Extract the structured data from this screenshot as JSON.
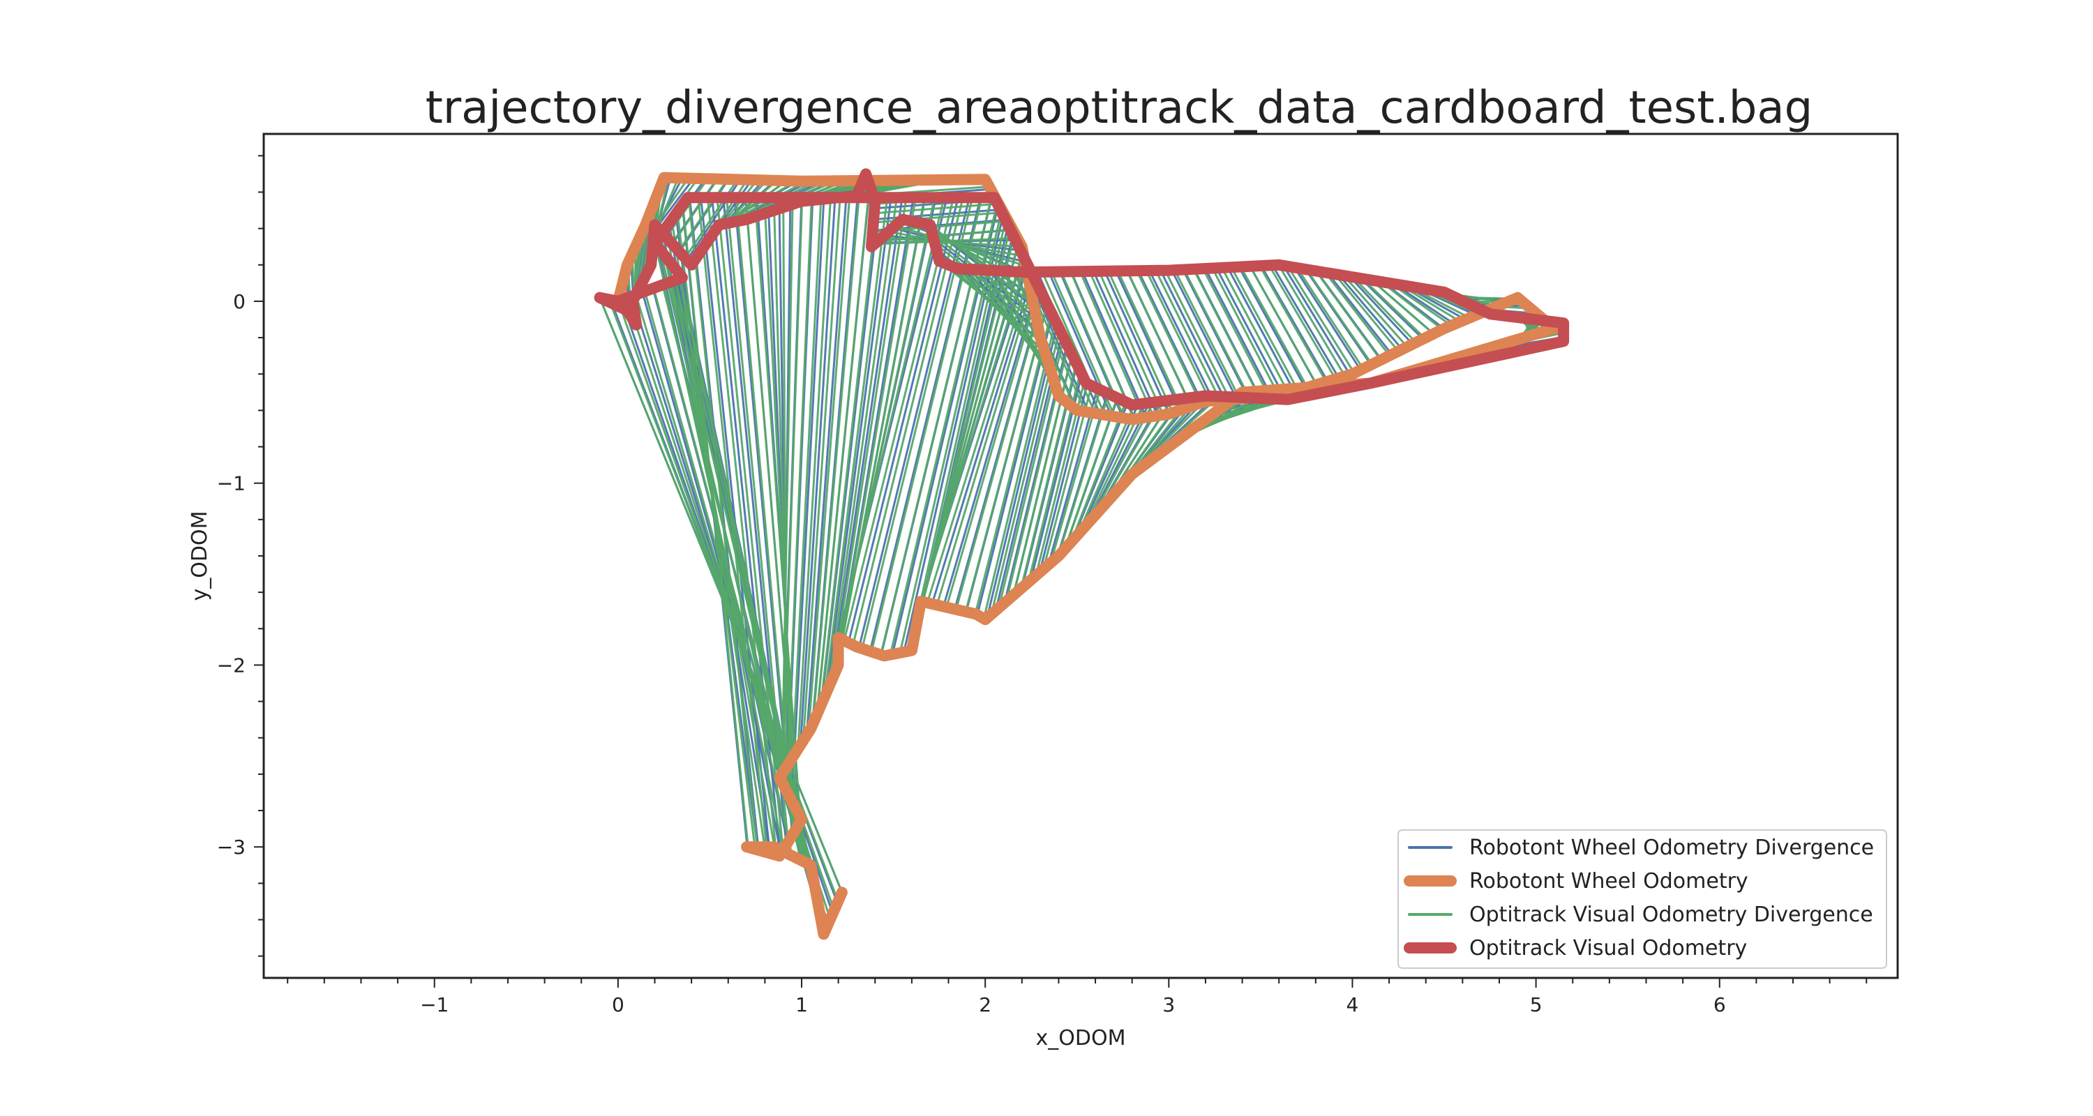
{
  "chart_data": {
    "type": "line",
    "title": "trajectory_divergence_areaoptitrack_data_cardboard_test.bag",
    "xlabel": "x_ODOM",
    "ylabel": "y_ODOM",
    "xlim": [
      -1.93,
      6.97
    ],
    "ylim": [
      -3.72,
      0.92
    ],
    "x_ticks": [
      -1,
      0,
      1,
      2,
      3,
      4,
      5,
      6
    ],
    "x_tick_labels": [
      "−1",
      "0",
      "1",
      "2",
      "3",
      "4",
      "5",
      "6"
    ],
    "y_ticks": [
      0,
      -1,
      -2,
      -3
    ],
    "y_tick_labels": [
      "0",
      "−1",
      "−2",
      "−3"
    ],
    "x_minor_step": 0.2,
    "y_minor_step": 0.2,
    "grid": false,
    "legend_position": "bottom-right",
    "legend": [
      {
        "label": "Robotont Wheel Odometry Divergence",
        "color": "#4c72b0",
        "style": "thin"
      },
      {
        "label": "Robotont Wheel Odometry",
        "color": "#dd8452",
        "style": "thick"
      },
      {
        "label": "Optitrack Visual Odometry Divergence",
        "color": "#55a868",
        "style": "thin"
      },
      {
        "label": "Optitrack Visual Odometry",
        "color": "#c44e52",
        "style": "thick"
      }
    ],
    "series": [
      {
        "name": "Robotont Wheel Odometry",
        "color": "#dd8452",
        "points": [
          [
            0.0,
            0.0
          ],
          [
            0.05,
            0.2
          ],
          [
            0.15,
            0.42
          ],
          [
            0.25,
            0.68
          ],
          [
            1.0,
            0.66
          ],
          [
            2.0,
            0.67
          ],
          [
            2.2,
            0.3
          ],
          [
            2.3,
            -0.2
          ],
          [
            2.4,
            -0.52
          ],
          [
            2.5,
            -0.6
          ],
          [
            2.8,
            -0.65
          ],
          [
            3.0,
            -0.62
          ],
          [
            3.2,
            -0.55
          ],
          [
            3.6,
            -0.52
          ],
          [
            4.0,
            -0.4
          ],
          [
            4.5,
            -0.15
          ],
          [
            4.9,
            0.02
          ],
          [
            5.1,
            -0.15
          ],
          [
            4.1,
            -0.45
          ],
          [
            3.4,
            -0.5
          ],
          [
            2.8,
            -0.95
          ],
          [
            2.4,
            -1.4
          ],
          [
            2.0,
            -1.75
          ],
          [
            1.95,
            -1.72
          ],
          [
            1.65,
            -1.65
          ],
          [
            1.6,
            -1.92
          ],
          [
            1.45,
            -1.95
          ],
          [
            1.3,
            -1.9
          ],
          [
            1.2,
            -1.85
          ],
          [
            1.2,
            -2.0
          ],
          [
            1.05,
            -2.35
          ],
          [
            0.88,
            -2.62
          ],
          [
            1.0,
            -2.85
          ],
          [
            0.88,
            -3.05
          ],
          [
            0.7,
            -3.0
          ],
          [
            0.85,
            -3.0
          ],
          [
            1.05,
            -3.1
          ],
          [
            1.12,
            -3.48
          ],
          [
            1.22,
            -3.25
          ]
        ]
      },
      {
        "name": "Optitrack Visual Odometry",
        "color": "#c44e52",
        "points": [
          [
            -0.1,
            0.02
          ],
          [
            0.05,
            -0.05
          ],
          [
            0.1,
            -0.13
          ],
          [
            0.08,
            0.0
          ],
          [
            0.18,
            0.2
          ],
          [
            0.2,
            0.42
          ],
          [
            0.4,
            0.2
          ],
          [
            0.55,
            0.42
          ],
          [
            0.7,
            0.45
          ],
          [
            1.0,
            0.55
          ],
          [
            1.3,
            0.58
          ],
          [
            1.35,
            0.7
          ],
          [
            1.4,
            0.55
          ],
          [
            1.38,
            0.3
          ],
          [
            1.55,
            0.45
          ],
          [
            1.7,
            0.42
          ],
          [
            1.75,
            0.22
          ],
          [
            1.85,
            0.18
          ],
          [
            2.2,
            0.16
          ],
          [
            3.0,
            0.17
          ],
          [
            3.6,
            0.2
          ],
          [
            4.5,
            0.05
          ],
          [
            4.75,
            -0.07
          ],
          [
            5.15,
            -0.12
          ],
          [
            5.15,
            -0.22
          ],
          [
            4.1,
            -0.45
          ],
          [
            3.65,
            -0.54
          ],
          [
            3.2,
            -0.52
          ],
          [
            2.8,
            -0.57
          ],
          [
            2.55,
            -0.45
          ],
          [
            2.05,
            0.57
          ],
          [
            1.5,
            0.57
          ],
          [
            1.0,
            0.57
          ],
          [
            0.38,
            0.57
          ],
          [
            0.2,
            0.32
          ],
          [
            0.35,
            0.13
          ],
          [
            0.0,
            0.0
          ],
          [
            -0.1,
            0.02
          ]
        ]
      }
    ],
    "divergence_series": [
      {
        "name": "Robotont Wheel Odometry Divergence",
        "color": "#4c72b0",
        "segments": 220
      },
      {
        "name": "Optitrack Visual Odometry Divergence",
        "color": "#55a868",
        "segments": 260
      }
    ]
  }
}
